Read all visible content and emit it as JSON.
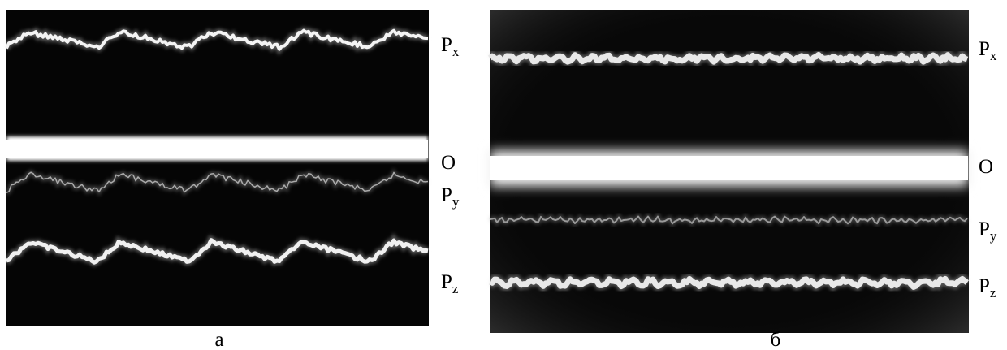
{
  "panels": [
    {
      "caption": "а",
      "traces": [
        {
          "main": "P",
          "sub": "x"
        },
        {
          "main": "O"
        },
        {
          "main": "P",
          "sub": "y"
        },
        {
          "main": "P",
          "sub": "z"
        }
      ]
    },
    {
      "caption": "б",
      "traces": [
        {
          "main": "P",
          "sub": "x"
        },
        {
          "main": "O"
        },
        {
          "main": "P",
          "sub": "y"
        },
        {
          "main": "P",
          "sub": "z"
        }
      ]
    }
  ]
}
